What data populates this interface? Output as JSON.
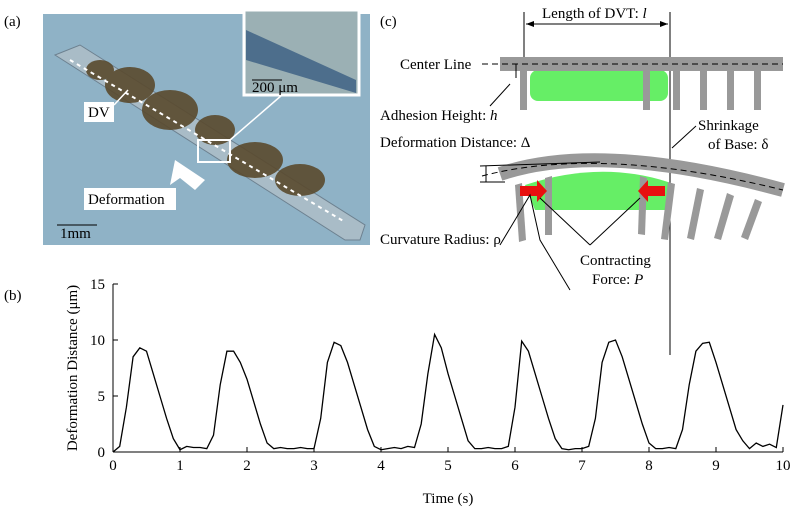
{
  "panels": {
    "a": {
      "label": "(a)",
      "dv": "DV",
      "deformation": "Deformation",
      "inset_scale": "200 μm",
      "scale": "1mm"
    },
    "c": {
      "label": "(c)",
      "length": "Length of DVT: ",
      "length_sym": "l",
      "center_line": "Center Line",
      "adhesion": "Adhesion Height: ",
      "adhesion_sym": "h",
      "deformation": "Deformation Distance:  Δ",
      "shrinkage_1": "Shrinkage",
      "shrinkage_2": "of Base: δ",
      "curvature": "Curvature Radius: ρ",
      "force_1": "Contracting",
      "force_2": "Force: ",
      "force_sym": "P"
    },
    "b": {
      "label": "(b)"
    }
  },
  "chart_data": {
    "type": "line",
    "xlabel": "Time (s)",
    "ylabel": "Deformation Distance (μm)",
    "color": "#000000",
    "x": [
      0,
      0.1,
      0.2,
      0.3,
      0.4,
      0.5,
      0.6,
      0.7,
      0.8,
      0.9,
      1,
      1.1,
      1.2,
      1.3,
      1.4,
      1.5,
      1.6,
      1.7,
      1.8,
      1.9,
      2,
      2.1,
      2.2,
      2.3,
      2.4,
      2.5,
      2.6,
      2.7,
      2.8,
      2.9,
      3,
      3.1,
      3.2,
      3.3,
      3.4,
      3.5,
      3.6,
      3.7,
      3.8,
      3.9,
      4,
      4.1,
      4.2,
      4.3,
      4.4,
      4.5,
      4.6,
      4.7,
      4.8,
      4.9,
      5,
      5.1,
      5.2,
      5.3,
      5.4,
      5.5,
      5.6,
      5.7,
      5.8,
      5.9,
      6,
      6.1,
      6.2,
      6.3,
      6.4,
      6.5,
      6.6,
      6.7,
      6.8,
      6.9,
      7,
      7.1,
      7.2,
      7.3,
      7.4,
      7.5,
      7.6,
      7.7,
      7.8,
      7.9,
      8,
      8.1,
      8.2,
      8.3,
      8.4,
      8.5,
      8.6,
      8.7,
      8.8,
      8.9,
      9,
      9.1,
      9.2,
      9.3,
      9.4,
      9.5,
      9.6,
      9.7,
      9.8,
      9.9,
      10
    ],
    "values": [
      0,
      0.5,
      4,
      8.5,
      9.3,
      9,
      7,
      5,
      3,
      1.2,
      0.2,
      0.5,
      0.4,
      0.4,
      0.3,
      1.5,
      6,
      9,
      9,
      8,
      6.5,
      4.5,
      2.5,
      0.8,
      0.3,
      0.4,
      0.3,
      0.3,
      0.4,
      0.3,
      0.3,
      3,
      8,
      9.8,
      9.5,
      8,
      6,
      4,
      2,
      0.5,
      0.2,
      0.3,
      0.4,
      0.3,
      0.5,
      0.4,
      2.5,
      7,
      10.5,
      9.3,
      7,
      5,
      3,
      1,
      0.3,
      0.3,
      0.4,
      0.3,
      0.3,
      0.5,
      4,
      9.9,
      9,
      7,
      5,
      3,
      1.2,
      0.3,
      0.2,
      0.3,
      0.3,
      0.5,
      3,
      8,
      9.8,
      10,
      8.5,
      6.5,
      4.5,
      2.5,
      0.8,
      0.3,
      0.3,
      0.4,
      0.3,
      2,
      6,
      9,
      9.7,
      9.8,
      8,
      6,
      4,
      2,
      1,
      0.3,
      0.8,
      0.5,
      0.7,
      0.4,
      4.2
    ],
    "xlim": [
      0,
      10
    ],
    "xticks": [
      0,
      1,
      2,
      3,
      4,
      5,
      6,
      7,
      8,
      9,
      10
    ],
    "ylim": [
      0,
      15
    ],
    "yticks": [
      0,
      5,
      10,
      15
    ]
  }
}
